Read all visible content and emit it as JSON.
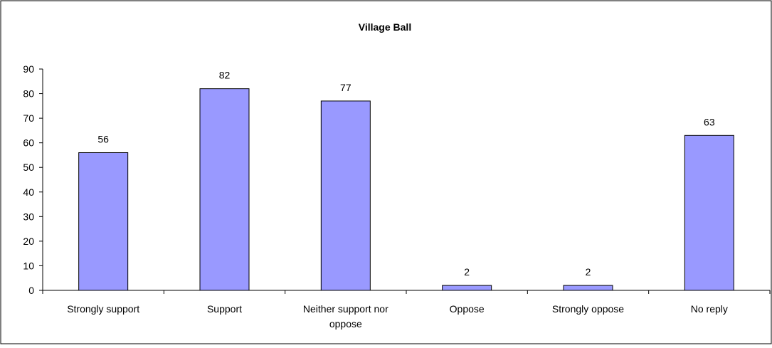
{
  "chart_data": {
    "type": "bar",
    "title": "Village Ball",
    "xlabel": "",
    "ylabel": "",
    "categories": [
      [
        "Strongly support"
      ],
      [
        "Support"
      ],
      [
        "Neither support nor",
        "oppose"
      ],
      [
        "Oppose"
      ],
      [
        "Strongly oppose"
      ],
      [
        "No reply"
      ]
    ],
    "values": [
      56,
      82,
      77,
      2,
      2,
      63
    ],
    "ylim": [
      0,
      90
    ],
    "yticks": [
      0,
      10,
      20,
      30,
      40,
      50,
      60,
      70,
      80,
      90
    ],
    "grid": false,
    "legend": "none",
    "data_labels": true,
    "colors": {
      "bar_fill": "#9999ff",
      "bar_stroke": "#000000",
      "axis": "#000000",
      "frame": "#000000",
      "background": "#ffffff"
    }
  }
}
